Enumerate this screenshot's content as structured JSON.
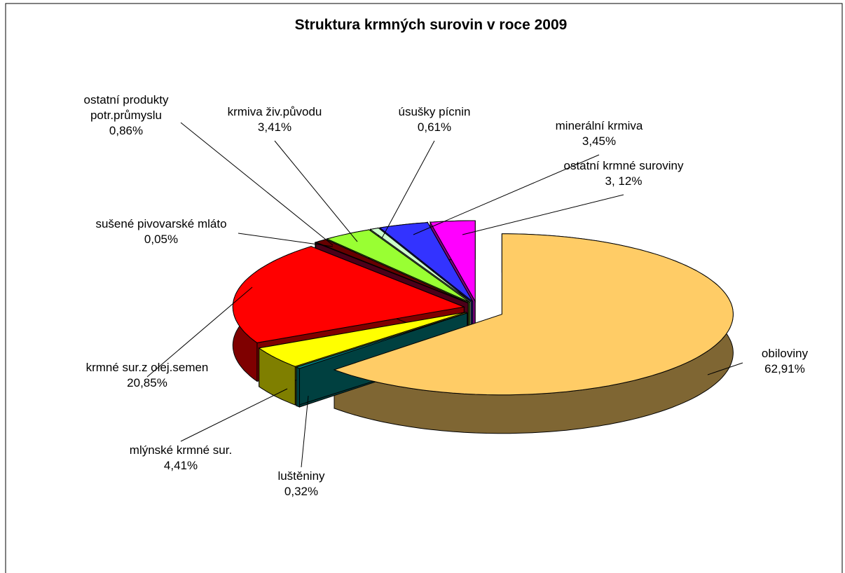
{
  "chart_data": {
    "type": "pie3d",
    "title": "Struktura krmných surovin v roce 2009",
    "categories": [
      "obiloviny",
      "luštěniny",
      "mlýnské krmné sur.",
      "krmné sur.z olej.semen",
      "sušené pivovarské mláto",
      "ostatní produkty\npotr.průmyslu",
      "krmiva živ.původu",
      "úsušky pícnin",
      "minerální krmiva",
      "ostatní krmné suroviny"
    ],
    "values": [
      62.91,
      0.32,
      4.41,
      20.85,
      0.05,
      0.86,
      3.41,
      0.61,
      3.45,
      3.12
    ],
    "value_labels": [
      "62,91%",
      "0,32%",
      "4,41%",
      "20,85%",
      "0,05%",
      "0,86%",
      "3,41%",
      "0,61%",
      "3,45%",
      "3, 12%"
    ],
    "colors": [
      "#FFCC66",
      "#008080",
      "#FFFF00",
      "#FF0000",
      "#990033",
      "#660000",
      "#99FF33",
      "#CCFFCC",
      "#3333FF",
      "#FF00FF"
    ]
  }
}
